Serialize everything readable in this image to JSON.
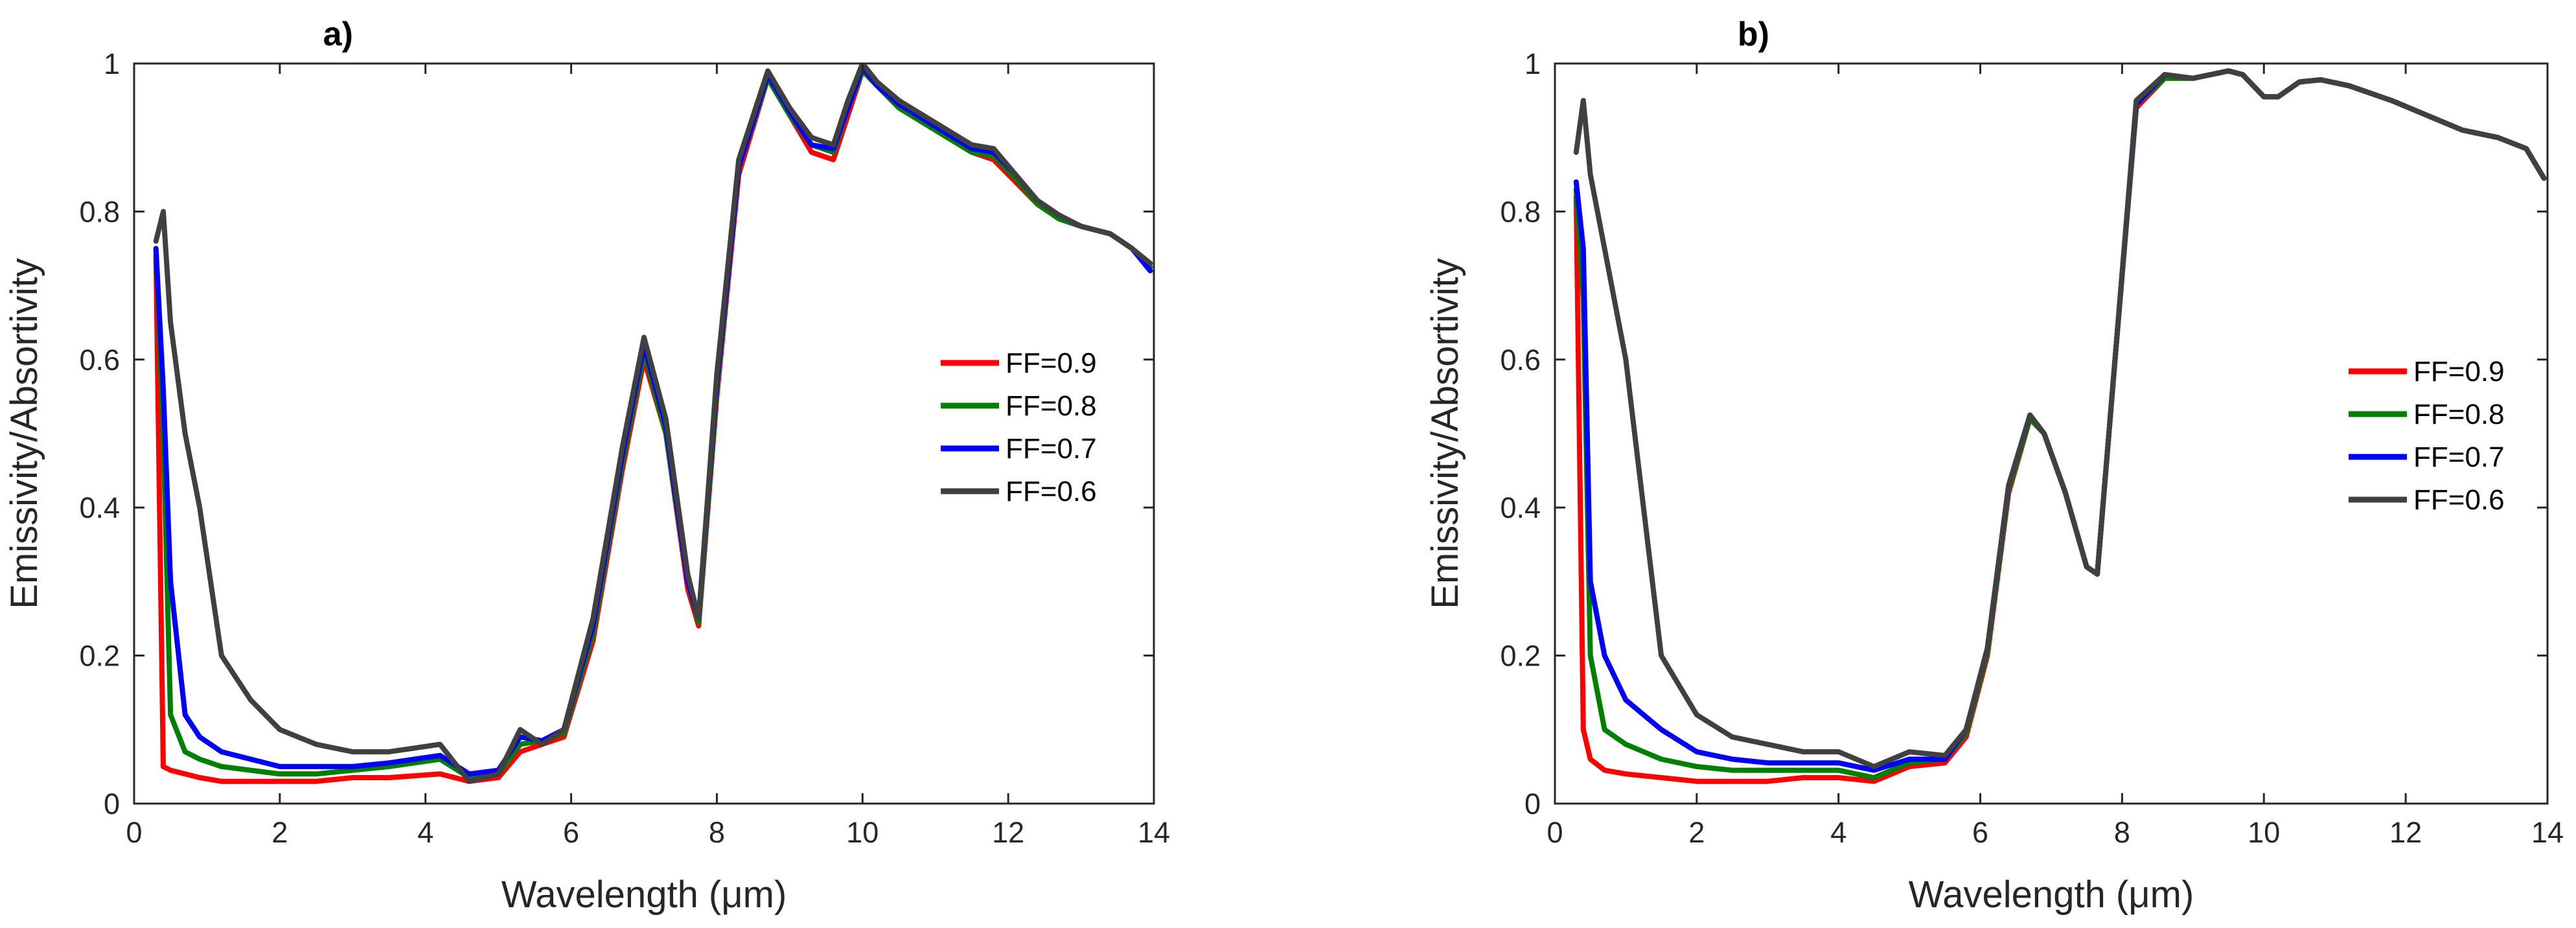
{
  "chart_data": [
    {
      "type": "line",
      "title": "a)",
      "xlabel": "Wavelength (μm)",
      "ylabel": "Emissivity/Absortivity",
      "xlim": [
        0,
        14
      ],
      "ylim": [
        0,
        1
      ],
      "xticks": [
        0,
        2,
        4,
        6,
        8,
        10,
        12,
        14
      ],
      "yticks": [
        0,
        0.2,
        0.4,
        0.6,
        0.8,
        1
      ],
      "ytick_labels": [
        "0",
        "0.2",
        "0.4",
        "0.6",
        "0.8",
        "1"
      ],
      "legend_position": "center-right",
      "series": [
        {
          "name": "FF=0.9",
          "color": "#ff0000",
          "x": [
            0.3,
            0.4,
            0.5,
            0.7,
            0.9,
            1.2,
            1.6,
            2.0,
            2.5,
            3.0,
            3.5,
            4.2,
            4.6,
            5.0,
            5.3,
            5.6,
            5.9,
            6.3,
            6.7,
            7.0,
            7.3,
            7.6,
            7.75,
            8.0,
            8.3,
            8.7,
            9.0,
            9.3,
            9.6,
            9.8,
            10.0,
            10.2,
            10.5,
            11.0,
            11.5,
            11.8,
            12.1,
            12.4,
            12.7,
            13.0,
            13.4,
            13.7,
            13.95
          ],
          "y": [
            0.74,
            0.05,
            0.045,
            0.04,
            0.035,
            0.03,
            0.03,
            0.03,
            0.03,
            0.035,
            0.035,
            0.04,
            0.03,
            0.035,
            0.07,
            0.08,
            0.09,
            0.22,
            0.45,
            0.6,
            0.5,
            0.29,
            0.24,
            0.55,
            0.85,
            0.98,
            0.93,
            0.88,
            0.87,
            0.93,
            0.99,
            0.97,
            0.94,
            0.91,
            0.88,
            0.87,
            0.84,
            0.81,
            0.79,
            0.78,
            0.77,
            0.75,
            0.72
          ]
        },
        {
          "name": "FF=0.8",
          "color": "#008000",
          "x": [
            0.3,
            0.4,
            0.5,
            0.7,
            0.9,
            1.2,
            1.6,
            2.0,
            2.5,
            3.0,
            3.5,
            4.2,
            4.6,
            5.0,
            5.3,
            5.6,
            5.9,
            6.3,
            6.7,
            7.0,
            7.3,
            7.6,
            7.75,
            8.0,
            8.3,
            8.7,
            9.0,
            9.3,
            9.6,
            9.8,
            10.0,
            10.2,
            10.5,
            11.0,
            11.5,
            11.8,
            12.1,
            12.4,
            12.7,
            13.0,
            13.4,
            13.7,
            13.95
          ],
          "y": [
            0.75,
            0.5,
            0.12,
            0.07,
            0.06,
            0.05,
            0.045,
            0.04,
            0.04,
            0.045,
            0.05,
            0.06,
            0.035,
            0.04,
            0.08,
            0.085,
            0.095,
            0.23,
            0.46,
            0.61,
            0.5,
            0.3,
            0.245,
            0.56,
            0.86,
            0.98,
            0.93,
            0.89,
            0.88,
            0.94,
            0.99,
            0.97,
            0.94,
            0.91,
            0.88,
            0.875,
            0.845,
            0.81,
            0.79,
            0.78,
            0.77,
            0.75,
            0.725
          ]
        },
        {
          "name": "FF=0.7",
          "color": "#0000ff",
          "x": [
            0.3,
            0.4,
            0.5,
            0.7,
            0.9,
            1.2,
            1.6,
            2.0,
            2.5,
            3.0,
            3.5,
            4.2,
            4.6,
            5.0,
            5.3,
            5.6,
            5.9,
            6.3,
            6.7,
            7.0,
            7.3,
            7.6,
            7.75,
            8.0,
            8.3,
            8.7,
            9.0,
            9.3,
            9.6,
            9.8,
            10.0,
            10.2,
            10.5,
            11.0,
            11.5,
            11.8,
            12.1,
            12.4,
            12.7,
            13.0,
            13.4,
            13.7,
            13.95
          ],
          "y": [
            0.75,
            0.56,
            0.3,
            0.12,
            0.09,
            0.07,
            0.06,
            0.05,
            0.05,
            0.05,
            0.055,
            0.065,
            0.04,
            0.045,
            0.09,
            0.085,
            0.1,
            0.24,
            0.47,
            0.62,
            0.51,
            0.3,
            0.25,
            0.57,
            0.86,
            0.985,
            0.935,
            0.89,
            0.885,
            0.94,
            0.995,
            0.97,
            0.945,
            0.915,
            0.885,
            0.88,
            0.85,
            0.815,
            0.795,
            0.78,
            0.77,
            0.75,
            0.72
          ]
        },
        {
          "name": "FF=0.6",
          "color": "#404040",
          "x": [
            0.3,
            0.4,
            0.5,
            0.7,
            0.9,
            1.2,
            1.6,
            2.0,
            2.5,
            3.0,
            3.5,
            4.2,
            4.6,
            5.0,
            5.3,
            5.6,
            5.9,
            6.3,
            6.7,
            7.0,
            7.3,
            7.6,
            7.75,
            8.0,
            8.3,
            8.7,
            9.0,
            9.3,
            9.6,
            9.8,
            10.0,
            10.2,
            10.5,
            11.0,
            11.5,
            11.8,
            12.1,
            12.4,
            12.7,
            13.0,
            13.4,
            13.7,
            13.95
          ],
          "y": [
            0.76,
            0.8,
            0.65,
            0.5,
            0.4,
            0.2,
            0.14,
            0.1,
            0.08,
            0.07,
            0.07,
            0.08,
            0.03,
            0.04,
            0.1,
            0.08,
            0.1,
            0.25,
            0.48,
            0.63,
            0.52,
            0.31,
            0.25,
            0.58,
            0.87,
            0.99,
            0.94,
            0.9,
            0.89,
            0.95,
            1.0,
            0.975,
            0.95,
            0.92,
            0.89,
            0.885,
            0.85,
            0.815,
            0.795,
            0.78,
            0.77,
            0.75,
            0.73
          ]
        }
      ]
    },
    {
      "type": "line",
      "title": "b)",
      "xlabel": "Wavelength (μm)",
      "ylabel": "Emissivity/Absortivity",
      "xlim": [
        0,
        14
      ],
      "ylim": [
        0,
        1
      ],
      "xticks": [
        0,
        2,
        4,
        6,
        8,
        10,
        12,
        14
      ],
      "yticks": [
        0,
        0.2,
        0.4,
        0.6,
        0.8,
        1
      ],
      "ytick_labels": [
        "0",
        "0.2",
        "0.4",
        "0.6",
        "0.8",
        "1"
      ],
      "legend_position": "center-right",
      "series": [
        {
          "name": "FF=0.9",
          "color": "#ff0000",
          "x": [
            0.3,
            0.4,
            0.5,
            0.7,
            1.0,
            1.5,
            2.0,
            2.5,
            3.0,
            3.5,
            4.0,
            4.5,
            5.0,
            5.5,
            5.8,
            6.1,
            6.4,
            6.7,
            6.9,
            7.2,
            7.5,
            7.65,
            7.9,
            8.2,
            8.6,
            9.0,
            9.5,
            9.7,
            10.0,
            10.2,
            10.5,
            10.8,
            11.2,
            11.8,
            12.3,
            12.8,
            13.3,
            13.7,
            13.95
          ],
          "y": [
            0.82,
            0.1,
            0.06,
            0.045,
            0.04,
            0.035,
            0.03,
            0.03,
            0.03,
            0.035,
            0.035,
            0.03,
            0.05,
            0.055,
            0.09,
            0.2,
            0.42,
            0.52,
            0.5,
            0.42,
            0.32,
            0.31,
            0.6,
            0.94,
            0.98,
            0.98,
            0.99,
            0.985,
            0.955,
            0.955,
            0.975,
            0.978,
            0.97,
            0.95,
            0.93,
            0.91,
            0.9,
            0.885,
            0.845
          ]
        },
        {
          "name": "FF=0.8",
          "color": "#008000",
          "x": [
            0.3,
            0.4,
            0.5,
            0.7,
            1.0,
            1.5,
            2.0,
            2.5,
            3.0,
            3.5,
            4.0,
            4.5,
            5.0,
            5.5,
            5.8,
            6.1,
            6.4,
            6.7,
            6.9,
            7.2,
            7.5,
            7.65,
            7.9,
            8.2,
            8.6,
            9.0,
            9.5,
            9.7,
            10.0,
            10.2,
            10.5,
            10.8,
            11.2,
            11.8,
            12.3,
            12.8,
            13.3,
            13.7,
            13.95
          ],
          "y": [
            0.83,
            0.68,
            0.2,
            0.1,
            0.08,
            0.06,
            0.05,
            0.045,
            0.045,
            0.045,
            0.045,
            0.035,
            0.055,
            0.06,
            0.095,
            0.205,
            0.425,
            0.52,
            0.5,
            0.42,
            0.32,
            0.31,
            0.6,
            0.945,
            0.98,
            0.98,
            0.99,
            0.985,
            0.955,
            0.955,
            0.975,
            0.978,
            0.97,
            0.95,
            0.93,
            0.91,
            0.9,
            0.885,
            0.845
          ]
        },
        {
          "name": "FF=0.7",
          "color": "#0000ff",
          "x": [
            0.3,
            0.4,
            0.5,
            0.7,
            1.0,
            1.5,
            2.0,
            2.5,
            3.0,
            3.5,
            4.0,
            4.5,
            5.0,
            5.5,
            5.8,
            6.1,
            6.4,
            6.7,
            6.9,
            7.2,
            7.5,
            7.65,
            7.9,
            8.2,
            8.6,
            9.0,
            9.5,
            9.7,
            10.0,
            10.2,
            10.5,
            10.8,
            11.2,
            11.8,
            12.3,
            12.8,
            13.3,
            13.7,
            13.95
          ],
          "y": [
            0.84,
            0.75,
            0.3,
            0.2,
            0.14,
            0.1,
            0.07,
            0.06,
            0.055,
            0.055,
            0.055,
            0.045,
            0.06,
            0.06,
            0.1,
            0.21,
            0.43,
            0.525,
            0.5,
            0.42,
            0.32,
            0.31,
            0.6,
            0.945,
            0.985,
            0.98,
            0.99,
            0.985,
            0.955,
            0.955,
            0.975,
            0.978,
            0.97,
            0.95,
            0.93,
            0.91,
            0.9,
            0.885,
            0.845
          ]
        },
        {
          "name": "FF=0.6",
          "color": "#404040",
          "x": [
            0.3,
            0.4,
            0.5,
            0.7,
            1.0,
            1.5,
            2.0,
            2.5,
            3.0,
            3.5,
            4.0,
            4.5,
            5.0,
            5.5,
            5.8,
            6.1,
            6.4,
            6.7,
            6.9,
            7.2,
            7.5,
            7.65,
            7.9,
            8.2,
            8.6,
            9.0,
            9.5,
            9.7,
            10.0,
            10.2,
            10.5,
            10.8,
            11.2,
            11.8,
            12.3,
            12.8,
            13.3,
            13.7,
            13.95
          ],
          "y": [
            0.88,
            0.95,
            0.85,
            0.75,
            0.6,
            0.2,
            0.12,
            0.09,
            0.08,
            0.07,
            0.07,
            0.05,
            0.07,
            0.065,
            0.1,
            0.21,
            0.43,
            0.525,
            0.5,
            0.42,
            0.32,
            0.31,
            0.6,
            0.95,
            0.985,
            0.98,
            0.99,
            0.985,
            0.955,
            0.955,
            0.975,
            0.978,
            0.97,
            0.95,
            0.93,
            0.91,
            0.9,
            0.885,
            0.845
          ]
        }
      ]
    }
  ]
}
